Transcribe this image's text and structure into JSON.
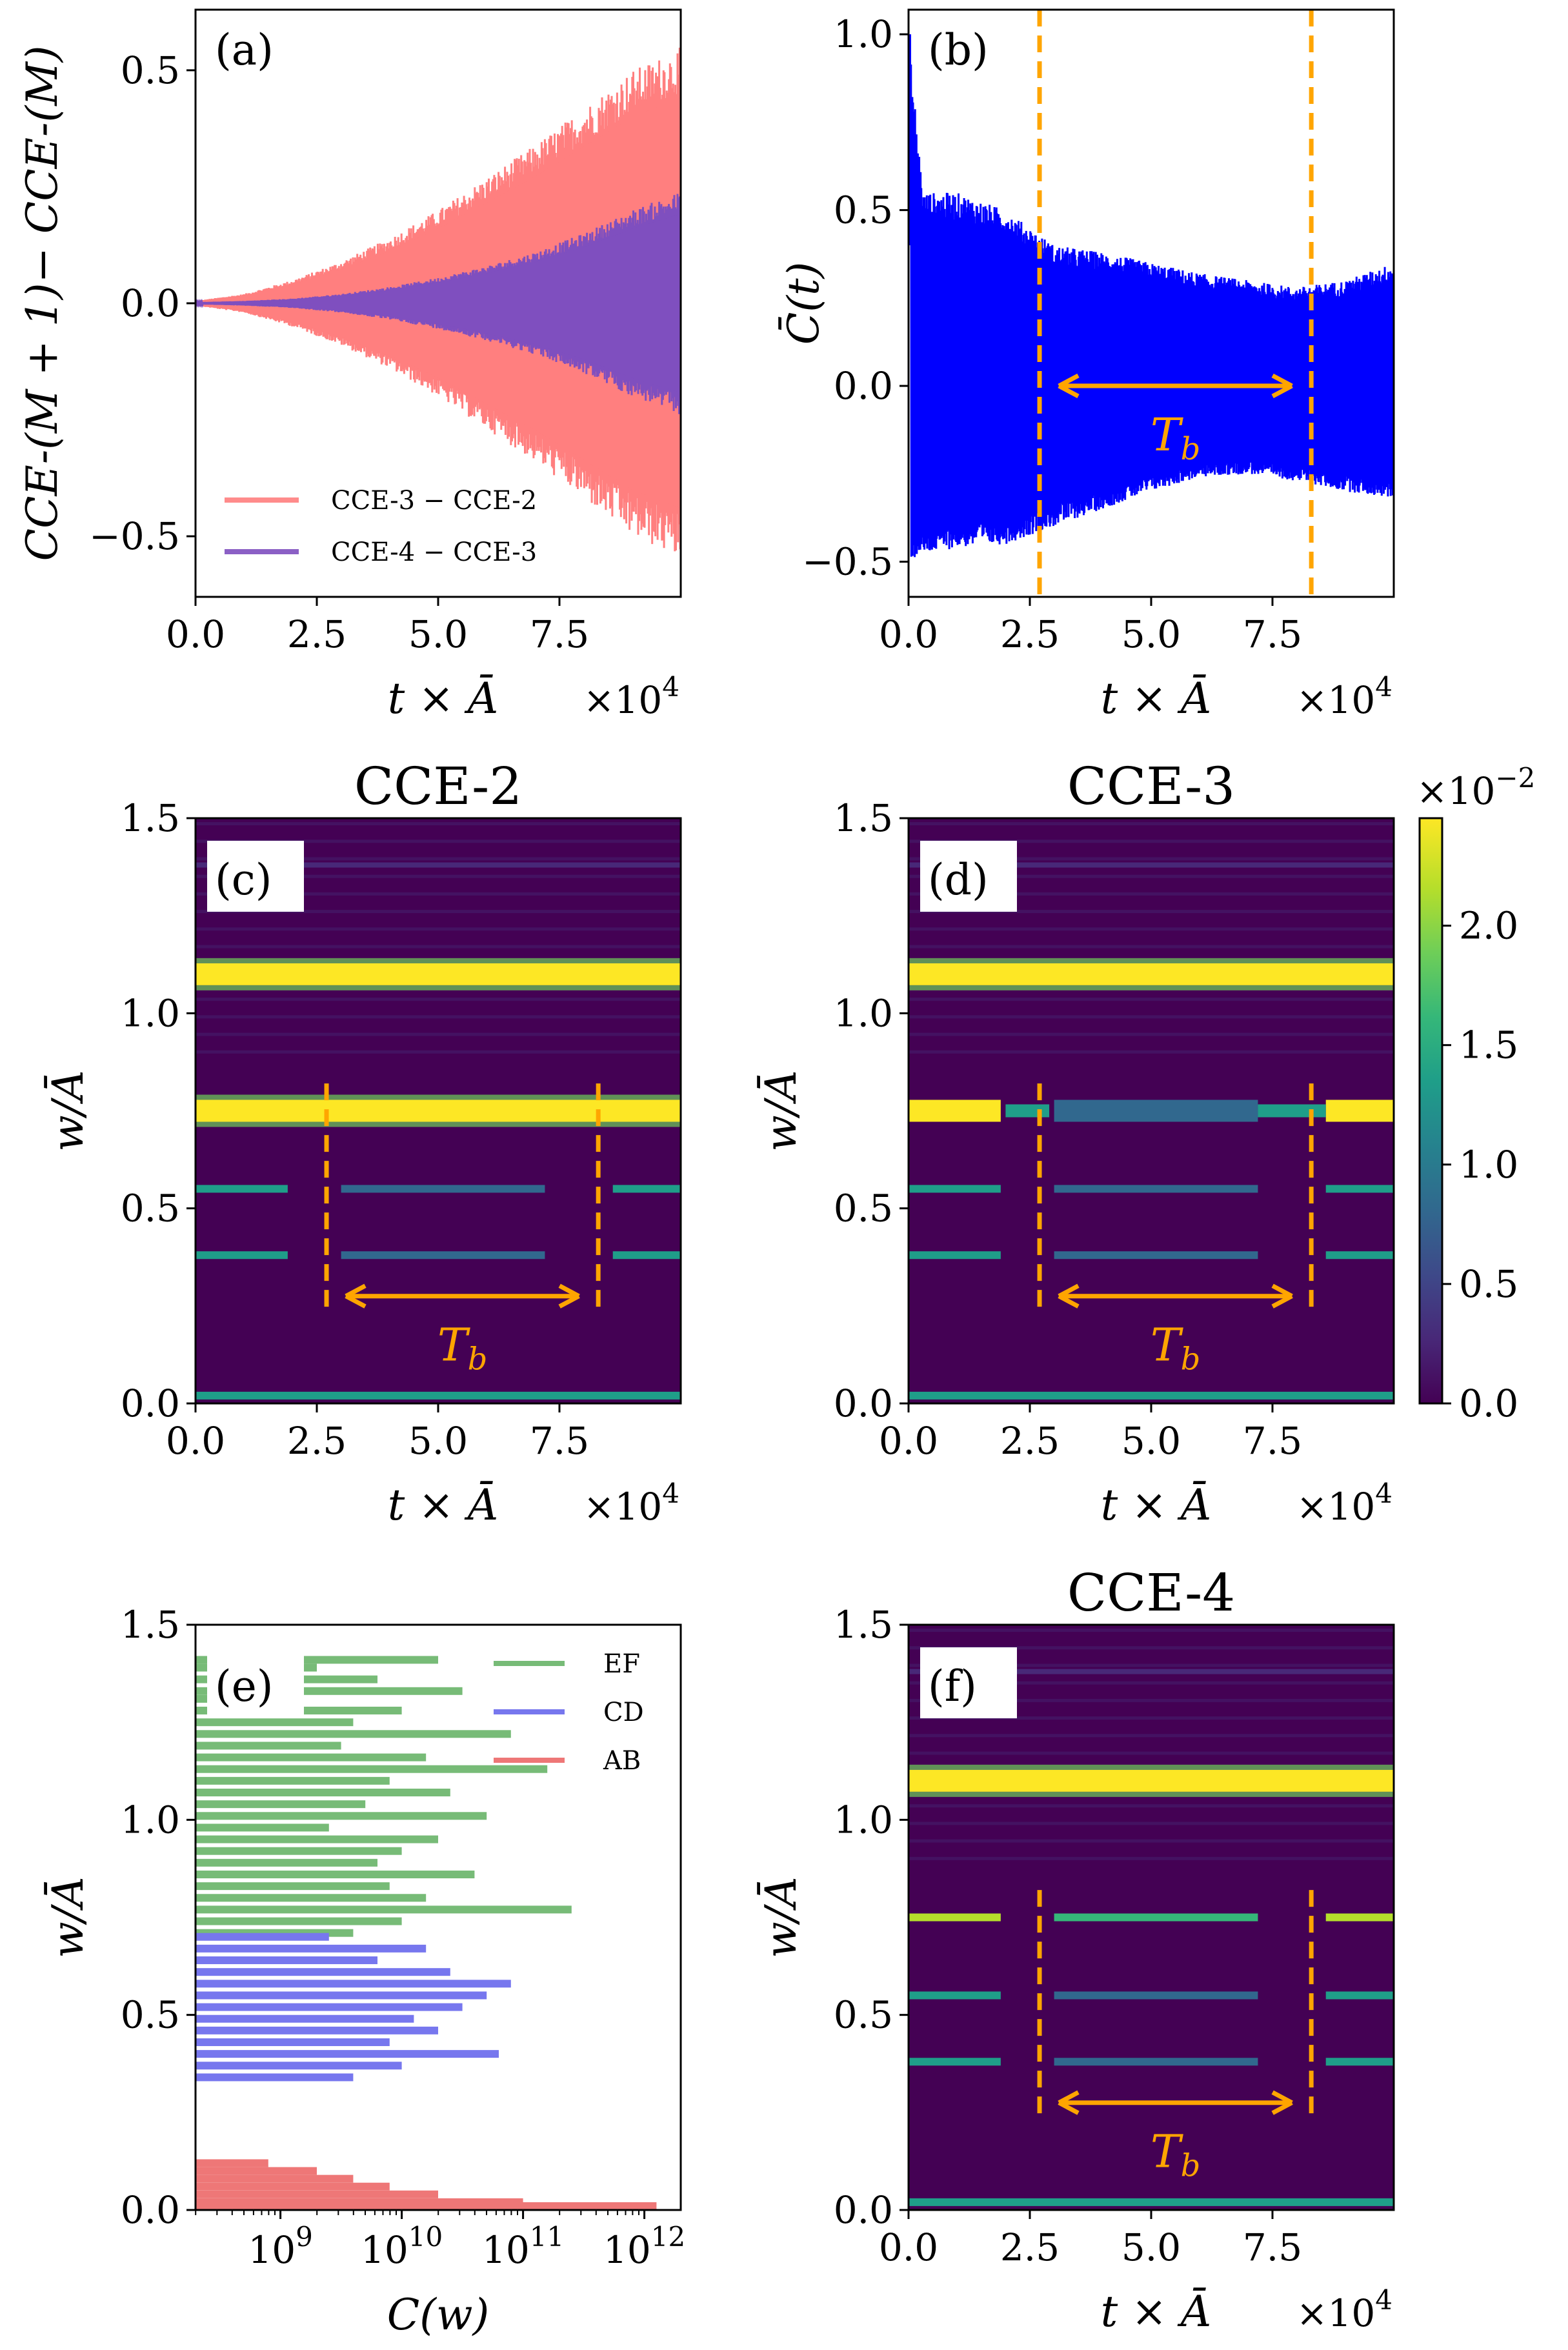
{
  "chart_data": [
    {
      "id": "a",
      "type": "line",
      "panel_label": "(a)",
      "xlabel": "t × Ā",
      "ylabel": "CCE-(M + 1)− CCE-(M)",
      "x_multiplier": "×10",
      "x_multiplier_exp": "4",
      "xlim": [
        0,
        10
      ],
      "ylim": [
        -0.63,
        0.63
      ],
      "xticks": [
        "0.0",
        "2.5",
        "5.0",
        "7.5"
      ],
      "xtick_values": [
        0,
        2.5,
        5,
        7.5
      ],
      "yticks": [
        "−0.5",
        "0.0",
        "0.5"
      ],
      "ytick_values": [
        -0.5,
        0,
        0.5
      ],
      "legend": "lower-left",
      "series": [
        {
          "name": "CCE-3 − CCE-2",
          "color": "#ff7f7f",
          "envelope_x": [
            0,
            1,
            2,
            3,
            4,
            5,
            6,
            7,
            8,
            9,
            10
          ],
          "envelope": [
            0.005,
            0.02,
            0.05,
            0.09,
            0.14,
            0.2,
            0.27,
            0.34,
            0.42,
            0.5,
            0.55
          ]
        },
        {
          "name": "CCE-4 − CCE-3",
          "color": "#7f4fbf",
          "envelope_x": [
            0,
            1,
            2,
            3,
            4,
            5,
            6,
            7,
            8,
            9,
            10
          ],
          "envelope": [
            0.002,
            0.005,
            0.01,
            0.02,
            0.035,
            0.055,
            0.08,
            0.11,
            0.15,
            0.2,
            0.24
          ]
        }
      ]
    },
    {
      "id": "b",
      "type": "line",
      "panel_label": "(b)",
      "xlabel": "t × Ā",
      "ylabel": "C̄(t)",
      "x_multiplier": "×10",
      "x_multiplier_exp": "4",
      "xlim": [
        0,
        10
      ],
      "ylim": [
        -0.6,
        1.07
      ],
      "xticks": [
        "0.0",
        "2.5",
        "5.0",
        "7.5"
      ],
      "xtick_values": [
        0,
        2.5,
        5,
        7.5
      ],
      "yticks": [
        "−0.5",
        "0.0",
        "0.5",
        "1.0"
      ],
      "ytick_values": [
        -0.5,
        0,
        0.5,
        1.0
      ],
      "color": "#0000ff",
      "envelope_x": [
        0,
        0.3,
        1,
        2,
        3,
        4,
        5,
        6,
        7,
        8,
        9,
        10
      ],
      "upper": [
        1.0,
        0.55,
        0.55,
        0.5,
        0.4,
        0.38,
        0.35,
        0.32,
        0.3,
        0.28,
        0.3,
        0.35
      ],
      "lower": [
        -0.5,
        -0.48,
        -0.46,
        -0.45,
        -0.4,
        -0.35,
        -0.3,
        -0.26,
        -0.25,
        -0.27,
        -0.3,
        -0.32
      ],
      "markers": [
        2.7,
        8.3
      ],
      "annotation": "T",
      "annotation_sub": "b",
      "annotation_y": 0.0
    },
    {
      "id": "c",
      "type": "heatmap",
      "title": "CCE-2",
      "panel_label": "(c)",
      "xlabel": "t × Ā",
      "ylabel": "w/Ā",
      "x_multiplier": "×10",
      "x_multiplier_exp": "4",
      "xlim": [
        0,
        10
      ],
      "ylim": [
        0,
        1.5
      ],
      "xticks": [
        "0.0",
        "2.5",
        "5.0",
        "7.5"
      ],
      "xtick_values": [
        0,
        2.5,
        5,
        7.5
      ],
      "yticks": [
        "0.0",
        "0.5",
        "1.0",
        "1.5"
      ],
      "ytick_values": [
        0,
        0.5,
        1.0,
        1.5
      ],
      "bands": [
        {
          "w": 1.1,
          "intensity": 1.0,
          "modulated": false
        },
        {
          "w": 0.75,
          "intensity": 1.0,
          "modulated": false
        },
        {
          "w": 0.55,
          "intensity": 0.55,
          "modulated": true
        },
        {
          "w": 0.38,
          "intensity": 0.55,
          "modulated": true
        },
        {
          "w": 0.02,
          "intensity": 0.6,
          "modulated": false
        },
        {
          "w": 1.38,
          "intensity": 0.15,
          "modulated": false
        }
      ],
      "markers": [
        2.7,
        8.3
      ],
      "marker_ymax": 0.82,
      "annotation": "T",
      "annotation_sub": "b",
      "annotation_y": 0.25
    },
    {
      "id": "d",
      "type": "heatmap",
      "title": "CCE-3",
      "panel_label": "(d)",
      "xlabel": "t × Ā",
      "ylabel": "w/Ā",
      "x_multiplier": "×10",
      "x_multiplier_exp": "4",
      "xlim": [
        0,
        10
      ],
      "ylim": [
        0,
        1.5
      ],
      "xticks": [
        "0.0",
        "2.5",
        "5.0",
        "7.5"
      ],
      "xtick_values": [
        0,
        2.5,
        5,
        7.5
      ],
      "yticks": [
        "0.0",
        "0.5",
        "1.0",
        "1.5"
      ],
      "ytick_values": [
        0,
        0.5,
        1.0,
        1.5
      ],
      "bands": [
        {
          "w": 1.1,
          "intensity": 1.0,
          "modulated": false
        },
        {
          "w": 0.75,
          "intensity": 0.95,
          "modulated": true
        },
        {
          "w": 0.55,
          "intensity": 0.55,
          "modulated": true
        },
        {
          "w": 0.38,
          "intensity": 0.55,
          "modulated": true
        },
        {
          "w": 0.02,
          "intensity": 0.6,
          "modulated": false
        },
        {
          "w": 1.38,
          "intensity": 0.15,
          "modulated": false
        }
      ],
      "markers": [
        2.7,
        8.3
      ],
      "marker_ymax": 0.82,
      "annotation": "T",
      "annotation_sub": "b",
      "annotation_y": 0.25
    },
    {
      "id": "e",
      "type": "bar",
      "orientation": "horizontal",
      "panel_label": "(e)",
      "xlabel": "C(w)",
      "ylabel": "w/Ā",
      "xscale": "log",
      "xlim_log10": [
        8.3,
        12.3
      ],
      "ylim": [
        0,
        1.5
      ],
      "xticks": [
        "10",
        "10",
        "10",
        "10"
      ],
      "xtick_exps": [
        "9",
        "10",
        "11",
        "12"
      ],
      "xtick_values_log10": [
        9,
        10,
        11,
        12
      ],
      "yticks": [
        "0.0",
        "0.5",
        "1.0",
        "1.5"
      ],
      "ytick_values": [
        0,
        0.5,
        1.0,
        1.5
      ],
      "legend": "top-right",
      "series": [
        {
          "name": "EF",
          "color": "#77bb77",
          "w": [
            1.41,
            1.39,
            1.36,
            1.33,
            1.31,
            1.28,
            1.25,
            1.22,
            1.19,
            1.16,
            1.13,
            1.1,
            1.07,
            1.04,
            1.01,
            0.98,
            0.95,
            0.92,
            0.89,
            0.86,
            0.83,
            0.8,
            0.77,
            0.74,
            0.71
          ],
          "log_c": [
            10.3,
            9.3,
            9.8,
            10.5,
            9.1,
            10.0,
            9.6,
            10.9,
            9.5,
            10.2,
            11.2,
            9.9,
            10.4,
            9.7,
            10.7,
            9.4,
            10.3,
            10.0,
            9.8,
            10.6,
            9.9,
            10.2,
            11.4,
            10.0,
            9.6
          ]
        },
        {
          "name": "CD",
          "color": "#7777ee",
          "w": [
            0.7,
            0.67,
            0.64,
            0.61,
            0.58,
            0.55,
            0.52,
            0.49,
            0.46,
            0.43,
            0.4,
            0.37,
            0.34
          ],
          "log_c": [
            9.4,
            10.2,
            9.8,
            10.4,
            10.9,
            10.7,
            10.5,
            10.1,
            10.3,
            9.9,
            10.8,
            10.0,
            9.6
          ]
        },
        {
          "name": "AB",
          "color": "#ee7777",
          "w": [
            0.12,
            0.1,
            0.08,
            0.06,
            0.04,
            0.02,
            0.01
          ],
          "log_c": [
            8.9,
            9.3,
            9.6,
            9.9,
            10.3,
            11.0,
            12.1
          ]
        }
      ]
    },
    {
      "id": "f",
      "type": "heatmap",
      "title": "CCE-4",
      "panel_label": "(f)",
      "xlabel": "t × Ā",
      "ylabel": "w/Ā",
      "x_multiplier": "×10",
      "x_multiplier_exp": "4",
      "xlim": [
        0,
        10
      ],
      "ylim": [
        0,
        1.5
      ],
      "xticks": [
        "0.0",
        "2.5",
        "5.0",
        "7.5"
      ],
      "xtick_values": [
        0,
        2.5,
        5,
        7.5
      ],
      "yticks": [
        "0.0",
        "0.5",
        "1.0",
        "1.5"
      ],
      "ytick_values": [
        0,
        0.5,
        1.0,
        1.5
      ],
      "bands": [
        {
          "w": 1.1,
          "intensity": 1.0,
          "modulated": false
        },
        {
          "w": 0.75,
          "intensity": 0.9,
          "modulated": true
        },
        {
          "w": 0.55,
          "intensity": 0.55,
          "modulated": true
        },
        {
          "w": 0.38,
          "intensity": 0.55,
          "modulated": true
        },
        {
          "w": 0.02,
          "intensity": 0.6,
          "modulated": false
        },
        {
          "w": 1.38,
          "intensity": 0.15,
          "modulated": false
        }
      ],
      "markers": [
        2.7,
        8.3
      ],
      "marker_ymax": 0.82,
      "annotation": "T",
      "annotation_sub": "b",
      "annotation_y": 0.25
    }
  ],
  "colorbar": {
    "multiplier": "×10",
    "multiplier_exp": "−2",
    "range": [
      0,
      2.45
    ],
    "ticks": [
      "0.0",
      "0.5",
      "1.0",
      "1.5",
      "2.0"
    ],
    "tick_values": [
      0,
      0.5,
      1.0,
      1.5,
      2.0
    ],
    "colormap": [
      "#440154",
      "#482878",
      "#3e4989",
      "#31688e",
      "#26828e",
      "#1f9e89",
      "#35b779",
      "#6ece58",
      "#b5de2b",
      "#fde725"
    ]
  },
  "colors": {
    "marker": "#ffa500"
  }
}
